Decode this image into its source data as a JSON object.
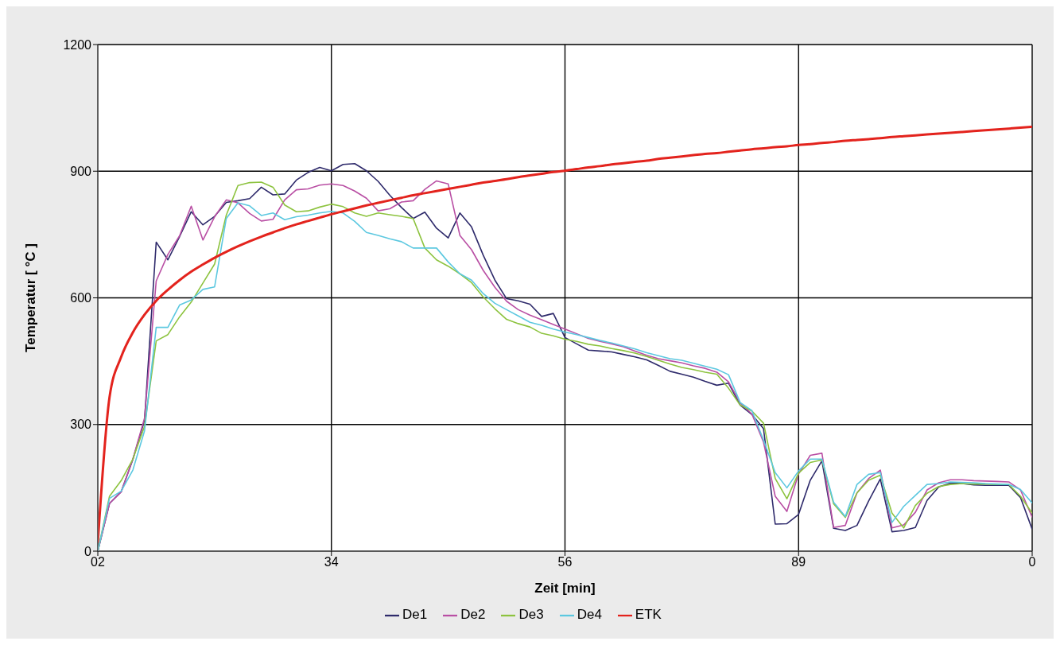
{
  "chart_data": {
    "type": "line",
    "xlabel": "Zeit [min]",
    "ylabel": "Temperatur [ °C ]",
    "categories": [
      "02",
      null,
      null,
      null,
      null,
      null,
      null,
      null,
      null,
      null,
      null,
      null,
      null,
      null,
      null,
      null,
      null,
      null,
      null,
      null,
      "34",
      null,
      null,
      null,
      null,
      null,
      null,
      null,
      null,
      null,
      null,
      null,
      null,
      null,
      null,
      null,
      null,
      null,
      null,
      null,
      "56",
      null,
      null,
      null,
      null,
      null,
      null,
      null,
      null,
      null,
      null,
      null,
      null,
      null,
      null,
      null,
      null,
      null,
      null,
      null,
      "89",
      null,
      null,
      null,
      null,
      null,
      null,
      null,
      null,
      null,
      null,
      null,
      null,
      null,
      null,
      null,
      null,
      null,
      null,
      null,
      "0"
    ],
    "ylim": [
      0,
      1200
    ],
    "yticks": [
      0,
      300,
      600,
      900,
      1200
    ],
    "grid": true,
    "legend": "bottom",
    "marker": "none",
    "line_style": "solid",
    "series": [
      {
        "name": "De1",
        "color": "#2e2a6b",
        "values": [
          0,
          113,
          141,
          217,
          310,
          732,
          690,
          745,
          804,
          773,
          793,
          826,
          830,
          835,
          862,
          844,
          846,
          879,
          897,
          909,
          901,
          916,
          918,
          901,
          876,
          843,
          814,
          788,
          803,
          765,
          742,
          801,
          768,
          701,
          642,
          598,
          593,
          585,
          556,
          563,
          506,
          491,
          476,
          474,
          472,
          466,
          460,
          453,
          440,
          426,
          419,
          412,
          402,
          393,
          398,
          346,
          324,
          290,
          64,
          65,
          87,
          168,
          214,
          54,
          49,
          61,
          119,
          171,
          46,
          49,
          56,
          120,
          152,
          161,
          160,
          157,
          156,
          156,
          156,
          127,
          52
        ]
      },
      {
        "name": "De2",
        "color": "#b94fa4",
        "values": [
          0,
          113,
          140,
          218,
          315,
          640,
          703,
          747,
          817,
          737,
          792,
          832,
          825,
          800,
          782,
          786,
          832,
          856,
          858,
          867,
          870,
          866,
          853,
          836,
          806,
          811,
          827,
          830,
          857,
          877,
          870,
          748,
          714,
          665,
          625,
          592,
          572,
          559,
          548,
          537,
          526,
          515,
          504,
          497,
          491,
          484,
          474,
          464,
          456,
          451,
          446,
          439,
          433,
          424,
          401,
          351,
          325,
          258,
          130,
          94,
          183,
          227,
          232,
          56,
          61,
          138,
          172,
          192,
          55,
          62,
          92,
          145,
          162,
          169,
          169,
          167,
          166,
          165,
          164,
          145,
          80
        ]
      },
      {
        "name": "De3",
        "color": "#8dc33f",
        "values": [
          0,
          130,
          167,
          218,
          296,
          498,
          513,
          555,
          590,
          635,
          680,
          796,
          866,
          873,
          874,
          862,
          820,
          804,
          806,
          815,
          822,
          816,
          801,
          793,
          801,
          797,
          793,
          788,
          718,
          690,
          675,
          657,
          636,
          602,
          574,
          549,
          539,
          531,
          516,
          510,
          502,
          497,
          490,
          486,
          480,
          475,
          469,
          461,
          452,
          443,
          435,
          430,
          424,
          419,
          386,
          346,
          332,
          303,
          172,
          124,
          185,
          210,
          216,
          112,
          80,
          138,
          168,
          180,
          90,
          55,
          108,
          137,
          153,
          158,
          160,
          159,
          159,
          158,
          158,
          130,
          90
        ]
      },
      {
        "name": "De4",
        "color": "#5cc8e0",
        "values": [
          0,
          125,
          142,
          192,
          285,
          530,
          530,
          583,
          595,
          620,
          626,
          788,
          825,
          818,
          795,
          801,
          785,
          792,
          796,
          801,
          805,
          801,
          781,
          755,
          748,
          740,
          733,
          718,
          718,
          718,
          685,
          657,
          642,
          610,
          587,
          572,
          557,
          542,
          535,
          526,
          519,
          513,
          506,
          499,
          493,
          486,
          479,
          470,
          463,
          456,
          452,
          445,
          438,
          431,
          418,
          352,
          333,
          263,
          186,
          150,
          190,
          218,
          218,
          116,
          82,
          158,
          182,
          186,
          68,
          106,
          132,
          158,
          160,
          164,
          163,
          162,
          160,
          159,
          158,
          146,
          114
        ]
      },
      {
        "name": "ETK",
        "color": "#e3231d",
        "values": [
          20,
          364,
          460,
          518,
          560,
          593,
          619,
          642,
          662,
          679,
          695,
          709,
          722,
          734,
          745,
          755,
          765,
          774,
          782,
          790,
          798,
          805,
          812,
          819,
          825,
          831,
          837,
          843,
          848,
          853,
          858,
          863,
          868,
          873,
          877,
          881,
          886,
          890,
          894,
          898,
          901,
          905,
          909,
          912,
          916,
          919,
          922,
          925,
          929,
          932,
          935,
          938,
          941,
          943,
          946,
          949,
          952,
          954,
          957,
          959,
          962,
          964,
          967,
          969,
          972,
          974,
          976,
          978,
          981,
          983,
          985,
          987,
          989,
          991,
          993,
          995,
          997,
          999,
          1001,
          1003,
          1005
        ]
      }
    ]
  }
}
